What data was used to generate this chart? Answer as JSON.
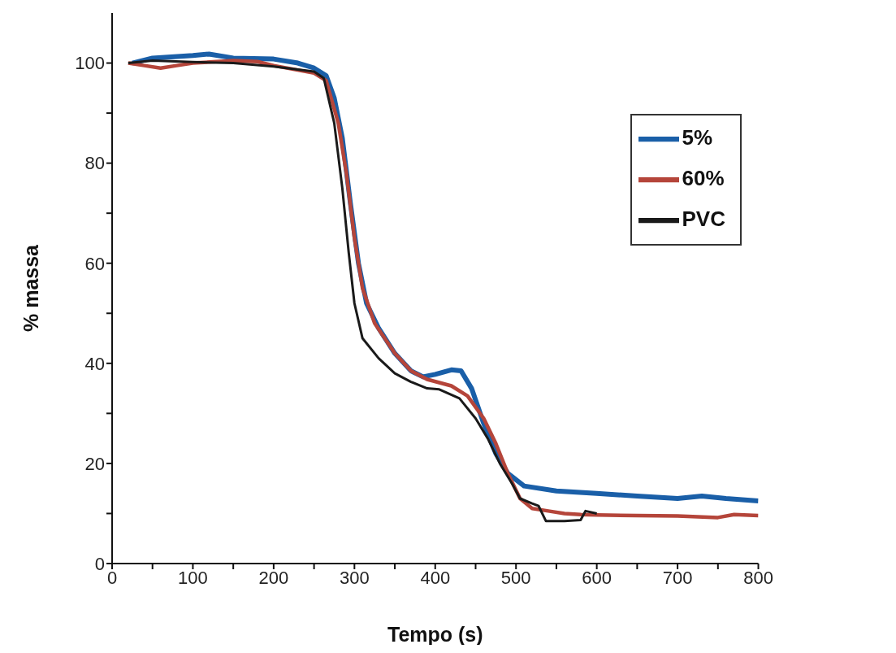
{
  "chart_data": {
    "type": "line",
    "xlabel": "Tempo (s)",
    "ylabel": "% massa",
    "xlim": [
      0,
      800
    ],
    "ylim": [
      0,
      110
    ],
    "xticks": [
      0,
      {
        "value": 50,
        "label": null
      },
      100,
      {
        "value": 150,
        "label": null
      },
      200,
      {
        "value": 250,
        "label": null
      },
      300,
      {
        "value": 350,
        "label": null
      },
      400,
      {
        "value": 450,
        "label": null
      },
      500,
      {
        "value": 550,
        "label": null
      },
      600,
      {
        "value": 650,
        "label": null
      },
      700,
      {
        "value": 750,
        "label": null
      },
      800
    ],
    "yticks": [
      0,
      {
        "value": 10,
        "label": null
      },
      20,
      {
        "value": 30,
        "label": null
      },
      40,
      {
        "value": 50,
        "label": null
      },
      60,
      {
        "value": 70,
        "label": null
      },
      80,
      {
        "value": 90,
        "label": null
      },
      100
    ],
    "grid": false,
    "legend": "top right",
    "marker": "none",
    "line_style": "solid",
    "series": [
      {
        "name": "5%",
        "color": "#1a5fa8",
        "x": [
          25,
          50,
          100,
          120,
          150,
          200,
          230,
          250,
          265,
          275,
          285,
          295,
          305,
          315,
          330,
          350,
          370,
          385,
          400,
          420,
          432,
          445,
          460,
          475,
          490,
          510,
          550,
          600,
          650,
          700,
          730,
          760,
          800
        ],
        "values": [
          100,
          101,
          101.5,
          101.8,
          101,
          100.8,
          100,
          99,
          97.5,
          93,
          85,
          72,
          60,
          52,
          47,
          42,
          38.5,
          37.3,
          37.8,
          38.7,
          38.5,
          35,
          28,
          22,
          18,
          15.5,
          14.5,
          14,
          13.5,
          13,
          13.5,
          13,
          12.5
        ]
      },
      {
        "name": "60%",
        "color": "#b5453a",
        "x": [
          20,
          40,
          60,
          80,
          100,
          150,
          180,
          200,
          250,
          265,
          280,
          290,
          300,
          310,
          325,
          350,
          370,
          390,
          420,
          440,
          460,
          475,
          490,
          505,
          520,
          540,
          560,
          580,
          600,
          650,
          700,
          750,
          770,
          800
        ],
        "values": [
          100,
          99.5,
          99,
          99.5,
          100,
          100.5,
          100.3,
          99.5,
          98,
          96.5,
          88,
          78,
          65,
          55,
          48,
          42,
          38.5,
          36.8,
          35.5,
          33.5,
          29,
          24,
          18,
          13,
          11,
          10.5,
          10,
          9.8,
          9.7,
          9.6,
          9.5,
          9.2,
          9.8,
          9.6
        ]
      },
      {
        "name": "PVC",
        "color": "#1a1a1a",
        "x": [
          20,
          50,
          100,
          150,
          200,
          250,
          262,
          275,
          285,
          293,
          300,
          310,
          330,
          350,
          370,
          390,
          405,
          430,
          450,
          465,
          480,
          495,
          505,
          520,
          528,
          537,
          560,
          580,
          586,
          600
        ],
        "values": [
          100,
          100.5,
          100.2,
          100,
          99.3,
          98.3,
          97,
          88,
          75,
          62,
          52,
          45,
          41,
          38,
          36.3,
          35,
          34.8,
          33,
          29,
          25,
          20,
          16,
          13,
          12,
          11.5,
          8.5,
          8.5,
          8.7,
          10.5,
          10
        ]
      }
    ]
  }
}
